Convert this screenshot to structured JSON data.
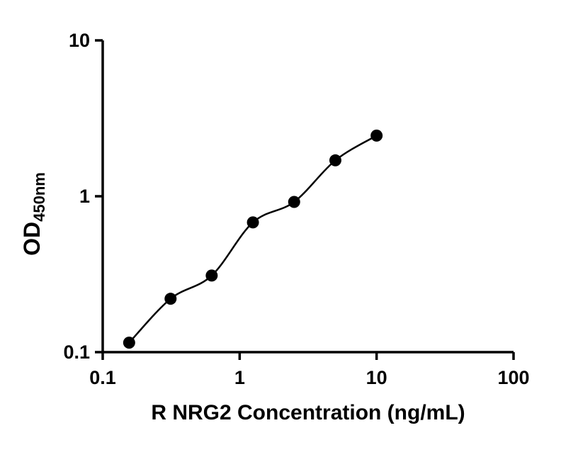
{
  "figure": {
    "background_color": "#ffffff",
    "axis_color": "#000000"
  },
  "chart_data": {
    "type": "scatter",
    "title": "",
    "xlabel": "R NRG2 Concentration (ng/mL)",
    "ylabel": "OD",
    "ylabel_subscript": "450nm",
    "xscale": "log",
    "yscale": "log",
    "xlim": [
      0.1,
      100
    ],
    "ylim": [
      0.1,
      10
    ],
    "x_tick_labels": [
      "0.1",
      "1",
      "10",
      "100"
    ],
    "y_tick_labels": [
      "0.1",
      "1",
      "10"
    ],
    "x": [
      0.156,
      0.313,
      0.625,
      1.25,
      2.5,
      5,
      10
    ],
    "y": [
      0.115,
      0.22,
      0.31,
      0.68,
      0.92,
      1.7,
      2.45
    ],
    "curve": "smooth-fit-through-points",
    "marker": "filled-circle",
    "marker_color": "#000000",
    "line_color": "#000000",
    "legend": "none",
    "grid": false
  }
}
